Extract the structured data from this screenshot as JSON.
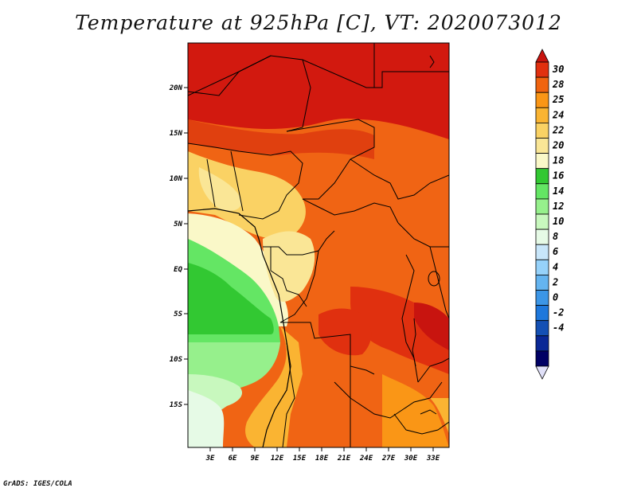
{
  "title": "Temperature at 925hPa [C], VT: 2020073012",
  "credit": "GrADS: IGES/COLA",
  "map": {
    "lat_labels": [
      "20N",
      "15N",
      "10N",
      "5N",
      "EQ",
      "5S",
      "10S",
      "15S"
    ],
    "lon_labels": [
      "3E",
      "6E",
      "9E",
      "12E",
      "15E",
      "18E",
      "21E",
      "24E",
      "27E",
      "30E",
      "33E"
    ]
  },
  "colorbar": {
    "ticks": [
      "30",
      "28",
      "25",
      "24",
      "22",
      "20",
      "18",
      "16",
      "14",
      "12",
      "10",
      "8",
      "6",
      "4",
      "2",
      "0",
      "-2",
      "-4"
    ],
    "colors": [
      "#c8140f",
      "#e1300f",
      "#f0640f",
      "#fa9616",
      "#fab432",
      "#fad264",
      "#fae696",
      "#faf8c8",
      "#32c832",
      "#64e664",
      "#96f08c",
      "#c8f8be",
      "#e6fae6",
      "#c8e6fa",
      "#96d2fa",
      "#64b4f0",
      "#3c96e6",
      "#1e78dc",
      "#1450b4",
      "#0a2896",
      "#000064",
      "#e0e0f8"
    ]
  }
}
